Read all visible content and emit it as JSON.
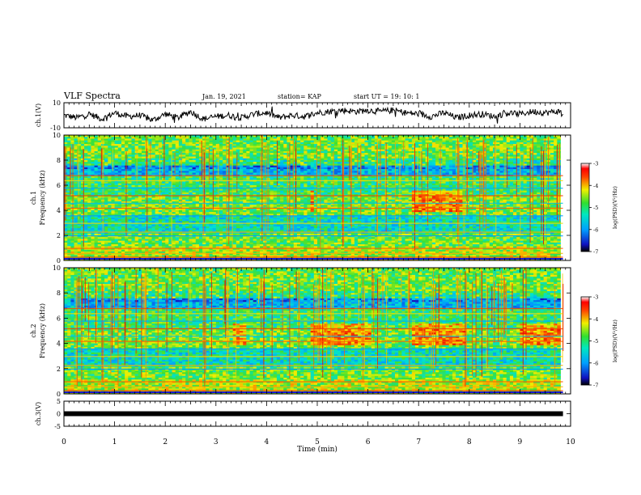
{
  "header": {
    "title": "VLF Spectra",
    "date": "Jan. 19, 2021",
    "station": "station= KAP",
    "start": "start UT =  19: 10: 1"
  },
  "chart_data": [
    {
      "type": "line",
      "panel": "ch1 waveform",
      "ylabel": "ch.1(V)",
      "ylim": [
        -10,
        10
      ],
      "yticks": [
        "10",
        "-10"
      ],
      "xlim": [
        0,
        10
      ],
      "series": [
        {
          "x": [
            0,
            0.25,
            0.5,
            0.75,
            1.0,
            1.25,
            1.5,
            1.75,
            2.0,
            2.25,
            2.5,
            2.75,
            3.0,
            3.25,
            3.5,
            3.75,
            4.0,
            4.25,
            4.5,
            4.75,
            5.0,
            5.25,
            5.5,
            5.75,
            6.0,
            6.25,
            6.5,
            6.75,
            7.0,
            7.25,
            7.5,
            7.75,
            8.0,
            8.25,
            8.5,
            8.75,
            9.0,
            9.25,
            9.5,
            9.75,
            9.85
          ],
          "y": [
            0,
            -2,
            1,
            -3,
            2,
            -1,
            0,
            -4,
            1,
            -2,
            3,
            -3,
            -1,
            0,
            -2,
            1,
            2,
            -2,
            0,
            -1,
            2,
            3,
            4,
            3,
            4,
            3,
            4,
            2,
            1,
            -1,
            2,
            -2,
            0,
            1,
            -1,
            2,
            1,
            3,
            2,
            3,
            2
          ]
        }
      ]
    },
    {
      "type": "heatmap",
      "panel": "ch1 spectrogram",
      "ylabel": "ch.1",
      "ylabel2": "Frequency (kHz)",
      "ylim": [
        0,
        10
      ],
      "yticks": [
        "0",
        "2",
        "4",
        "6",
        "8",
        "10"
      ],
      "xlim": [
        0,
        10
      ],
      "colorbar": {
        "label": "log(PSD)(V²/Hz)",
        "range": [
          -7,
          -3
        ],
        "ticks": [
          "-3",
          "-4",
          "-5",
          "-6",
          "-7"
        ]
      }
    },
    {
      "type": "heatmap",
      "panel": "ch2 spectrogram",
      "ylabel": "ch.2",
      "ylabel2": "Frequency (kHz)",
      "ylim": [
        0,
        10
      ],
      "yticks": [
        "0",
        "2",
        "4",
        "6",
        "8",
        "10"
      ],
      "xlim": [
        0,
        10
      ],
      "colorbar": {
        "label": "log(PSD)(V²/Hz)",
        "range": [
          -7,
          -3
        ],
        "ticks": [
          "-3",
          "-4",
          "-5",
          "-6",
          "-7"
        ]
      }
    },
    {
      "type": "line",
      "panel": "ch3",
      "ylabel": "ch.3(V)",
      "ylim": [
        -5,
        5
      ],
      "yticks": [
        "5",
        "0",
        "-5"
      ],
      "xlim": [
        0,
        10
      ],
      "series": [
        {
          "x": [
            0,
            9.85
          ],
          "y": [
            0,
            0
          ]
        }
      ]
    }
  ],
  "xaxis": {
    "label": "Time (min)",
    "ticks": [
      "0",
      "1",
      "2",
      "3",
      "4",
      "5",
      "6",
      "7",
      "8",
      "9",
      "10"
    ]
  }
}
